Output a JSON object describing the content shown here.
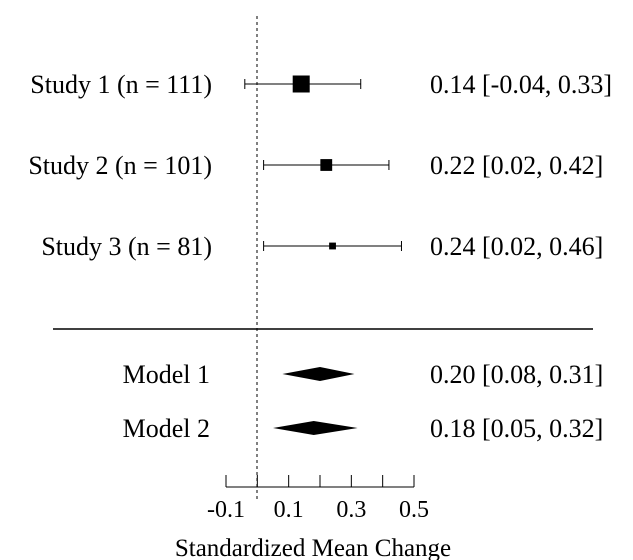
{
  "chart_data": {
    "type": "forest",
    "xlabel": "Standardized Mean Change",
    "xlim": [
      -0.1,
      0.5
    ],
    "xticks": [
      -0.1,
      0.0,
      0.1,
      0.2,
      0.3,
      0.4,
      0.5
    ],
    "xtick_labels": [
      "-0.1",
      "",
      "0.1",
      "",
      "0.3",
      "",
      "0.5"
    ],
    "reference_line": 0,
    "studies": [
      {
        "label": "Study 1 (n = 111)",
        "estimate": 0.14,
        "lower": -0.04,
        "upper": 0.33,
        "weight": 111,
        "ci_text": "0.14 [-0.04, 0.33]"
      },
      {
        "label": "Study 2 (n = 101)",
        "estimate": 0.22,
        "lower": 0.02,
        "upper": 0.42,
        "weight": 101,
        "ci_text": "0.22 [0.02, 0.42]"
      },
      {
        "label": "Study 3 (n = 81)",
        "estimate": 0.24,
        "lower": 0.02,
        "upper": 0.46,
        "weight": 81,
        "ci_text": "0.24 [0.02, 0.46]"
      }
    ],
    "models": [
      {
        "label": "Model 1",
        "estimate": 0.2,
        "lower": 0.08,
        "upper": 0.31,
        "ci_text": "0.20 [0.08, 0.31]"
      },
      {
        "label": "Model 2",
        "estimate": 0.18,
        "lower": 0.05,
        "upper": 0.32,
        "ci_text": "0.18 [0.05, 0.32]"
      }
    ]
  }
}
